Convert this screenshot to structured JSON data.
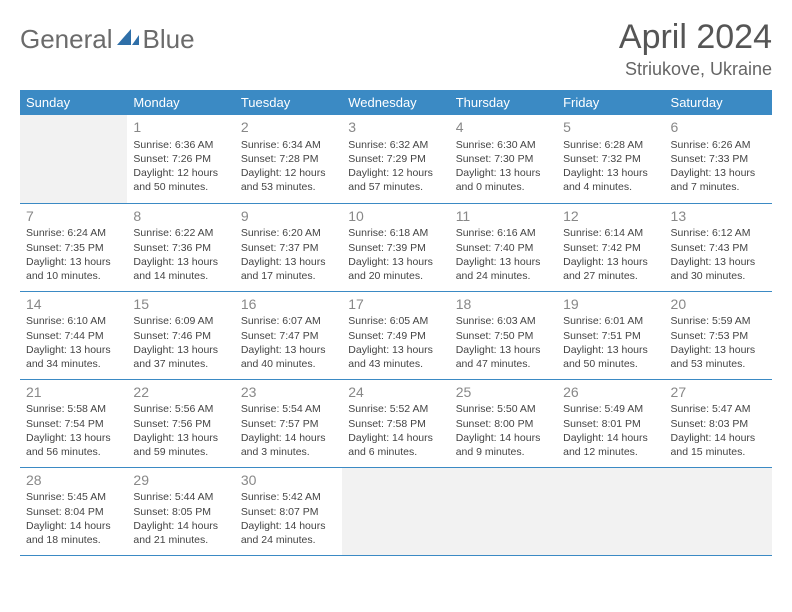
{
  "header": {
    "logo_general": "General",
    "logo_blue": "Blue",
    "month_title": "April 2024",
    "location": "Striukove, Ukraine"
  },
  "colors": {
    "header_bg": "#3b8ac4",
    "header_text": "#ffffff",
    "cell_border": "#3b8ac4",
    "empty_cell_bg": "#f2f2f2",
    "daynum_color": "#888888",
    "body_text": "#444444",
    "logo_gray": "#6b6b6b",
    "logo_blue": "#3b7fbf"
  },
  "weekdays": [
    "Sunday",
    "Monday",
    "Tuesday",
    "Wednesday",
    "Thursday",
    "Friday",
    "Saturday"
  ],
  "weeks": [
    [
      null,
      {
        "day": "1",
        "sunrise": "Sunrise: 6:36 AM",
        "sunset": "Sunset: 7:26 PM",
        "daylight": "Daylight: 12 hours and 50 minutes."
      },
      {
        "day": "2",
        "sunrise": "Sunrise: 6:34 AM",
        "sunset": "Sunset: 7:28 PM",
        "daylight": "Daylight: 12 hours and 53 minutes."
      },
      {
        "day": "3",
        "sunrise": "Sunrise: 6:32 AM",
        "sunset": "Sunset: 7:29 PM",
        "daylight": "Daylight: 12 hours and 57 minutes."
      },
      {
        "day": "4",
        "sunrise": "Sunrise: 6:30 AM",
        "sunset": "Sunset: 7:30 PM",
        "daylight": "Daylight: 13 hours and 0 minutes."
      },
      {
        "day": "5",
        "sunrise": "Sunrise: 6:28 AM",
        "sunset": "Sunset: 7:32 PM",
        "daylight": "Daylight: 13 hours and 4 minutes."
      },
      {
        "day": "6",
        "sunrise": "Sunrise: 6:26 AM",
        "sunset": "Sunset: 7:33 PM",
        "daylight": "Daylight: 13 hours and 7 minutes."
      }
    ],
    [
      {
        "day": "7",
        "sunrise": "Sunrise: 6:24 AM",
        "sunset": "Sunset: 7:35 PM",
        "daylight": "Daylight: 13 hours and 10 minutes."
      },
      {
        "day": "8",
        "sunrise": "Sunrise: 6:22 AM",
        "sunset": "Sunset: 7:36 PM",
        "daylight": "Daylight: 13 hours and 14 minutes."
      },
      {
        "day": "9",
        "sunrise": "Sunrise: 6:20 AM",
        "sunset": "Sunset: 7:37 PM",
        "daylight": "Daylight: 13 hours and 17 minutes."
      },
      {
        "day": "10",
        "sunrise": "Sunrise: 6:18 AM",
        "sunset": "Sunset: 7:39 PM",
        "daylight": "Daylight: 13 hours and 20 minutes."
      },
      {
        "day": "11",
        "sunrise": "Sunrise: 6:16 AM",
        "sunset": "Sunset: 7:40 PM",
        "daylight": "Daylight: 13 hours and 24 minutes."
      },
      {
        "day": "12",
        "sunrise": "Sunrise: 6:14 AM",
        "sunset": "Sunset: 7:42 PM",
        "daylight": "Daylight: 13 hours and 27 minutes."
      },
      {
        "day": "13",
        "sunrise": "Sunrise: 6:12 AM",
        "sunset": "Sunset: 7:43 PM",
        "daylight": "Daylight: 13 hours and 30 minutes."
      }
    ],
    [
      {
        "day": "14",
        "sunrise": "Sunrise: 6:10 AM",
        "sunset": "Sunset: 7:44 PM",
        "daylight": "Daylight: 13 hours and 34 minutes."
      },
      {
        "day": "15",
        "sunrise": "Sunrise: 6:09 AM",
        "sunset": "Sunset: 7:46 PM",
        "daylight": "Daylight: 13 hours and 37 minutes."
      },
      {
        "day": "16",
        "sunrise": "Sunrise: 6:07 AM",
        "sunset": "Sunset: 7:47 PM",
        "daylight": "Daylight: 13 hours and 40 minutes."
      },
      {
        "day": "17",
        "sunrise": "Sunrise: 6:05 AM",
        "sunset": "Sunset: 7:49 PM",
        "daylight": "Daylight: 13 hours and 43 minutes."
      },
      {
        "day": "18",
        "sunrise": "Sunrise: 6:03 AM",
        "sunset": "Sunset: 7:50 PM",
        "daylight": "Daylight: 13 hours and 47 minutes."
      },
      {
        "day": "19",
        "sunrise": "Sunrise: 6:01 AM",
        "sunset": "Sunset: 7:51 PM",
        "daylight": "Daylight: 13 hours and 50 minutes."
      },
      {
        "day": "20",
        "sunrise": "Sunrise: 5:59 AM",
        "sunset": "Sunset: 7:53 PM",
        "daylight": "Daylight: 13 hours and 53 minutes."
      }
    ],
    [
      {
        "day": "21",
        "sunrise": "Sunrise: 5:58 AM",
        "sunset": "Sunset: 7:54 PM",
        "daylight": "Daylight: 13 hours and 56 minutes."
      },
      {
        "day": "22",
        "sunrise": "Sunrise: 5:56 AM",
        "sunset": "Sunset: 7:56 PM",
        "daylight": "Daylight: 13 hours and 59 minutes."
      },
      {
        "day": "23",
        "sunrise": "Sunrise: 5:54 AM",
        "sunset": "Sunset: 7:57 PM",
        "daylight": "Daylight: 14 hours and 3 minutes."
      },
      {
        "day": "24",
        "sunrise": "Sunrise: 5:52 AM",
        "sunset": "Sunset: 7:58 PM",
        "daylight": "Daylight: 14 hours and 6 minutes."
      },
      {
        "day": "25",
        "sunrise": "Sunrise: 5:50 AM",
        "sunset": "Sunset: 8:00 PM",
        "daylight": "Daylight: 14 hours and 9 minutes."
      },
      {
        "day": "26",
        "sunrise": "Sunrise: 5:49 AM",
        "sunset": "Sunset: 8:01 PM",
        "daylight": "Daylight: 14 hours and 12 minutes."
      },
      {
        "day": "27",
        "sunrise": "Sunrise: 5:47 AM",
        "sunset": "Sunset: 8:03 PM",
        "daylight": "Daylight: 14 hours and 15 minutes."
      }
    ],
    [
      {
        "day": "28",
        "sunrise": "Sunrise: 5:45 AM",
        "sunset": "Sunset: 8:04 PM",
        "daylight": "Daylight: 14 hours and 18 minutes."
      },
      {
        "day": "29",
        "sunrise": "Sunrise: 5:44 AM",
        "sunset": "Sunset: 8:05 PM",
        "daylight": "Daylight: 14 hours and 21 minutes."
      },
      {
        "day": "30",
        "sunrise": "Sunrise: 5:42 AM",
        "sunset": "Sunset: 8:07 PM",
        "daylight": "Daylight: 14 hours and 24 minutes."
      },
      null,
      null,
      null,
      null
    ]
  ]
}
